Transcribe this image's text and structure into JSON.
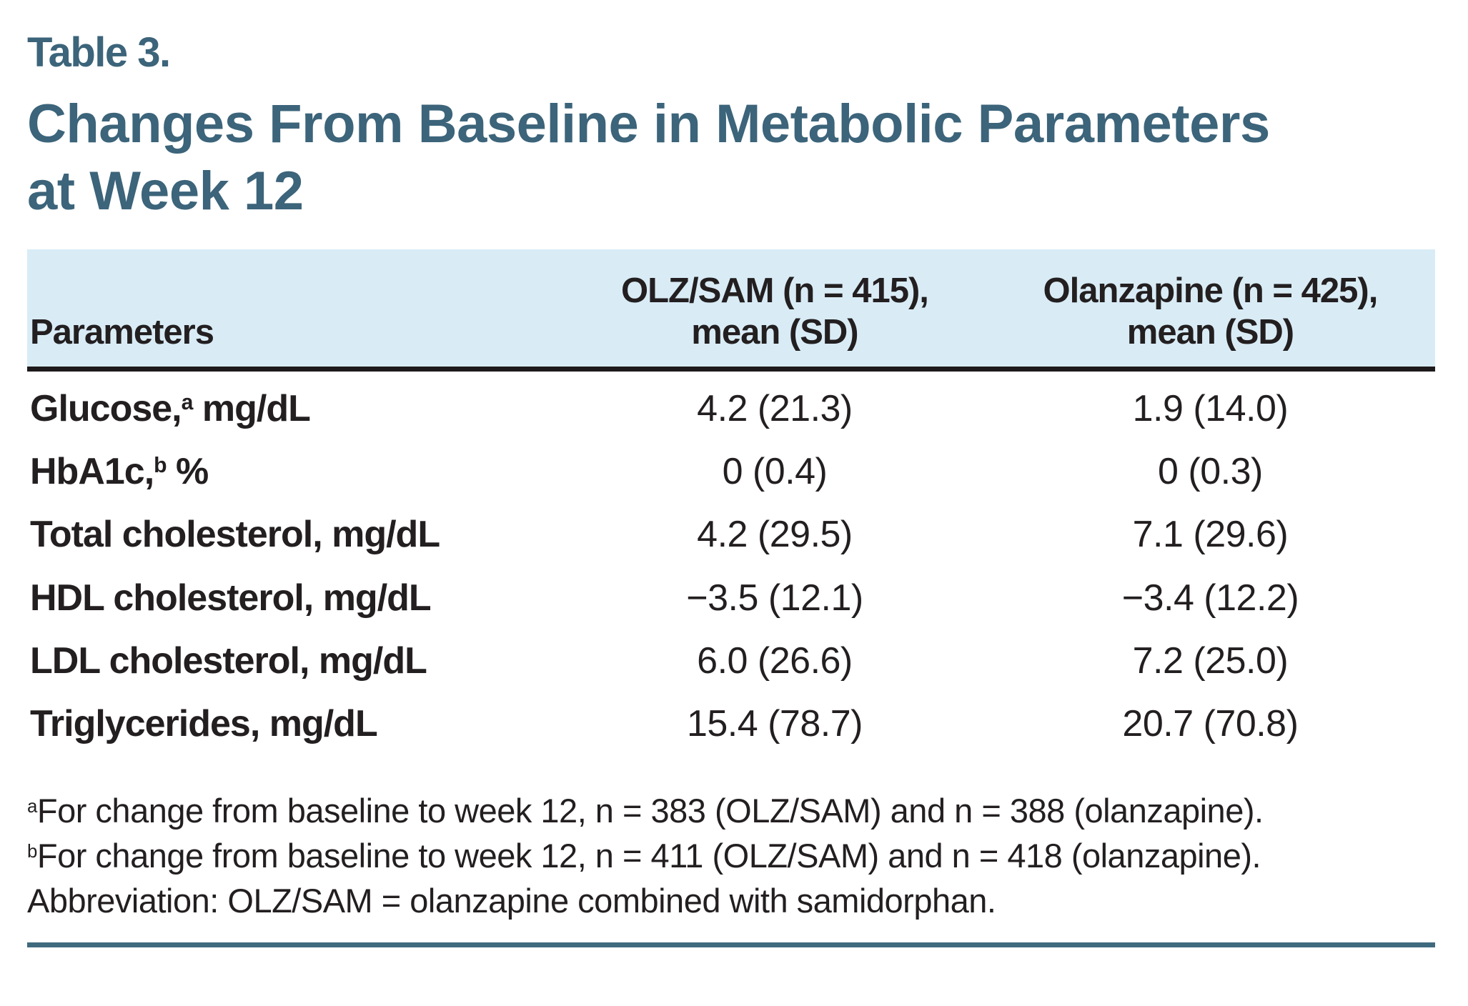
{
  "colors": {
    "accent_teal": "#3c647a",
    "header_band_bg": "#d9ecf6",
    "header_rule_black": "#1e1a1b",
    "bottom_rule_teal": "#3f6a7d",
    "text_black": "#231f20"
  },
  "table_label": "Table 3.",
  "title": "Changes From Baseline in Metabolic Parameters\nat Week 12",
  "table": {
    "col_headers": {
      "parameters": "Parameters",
      "olzsam": "OLZ/SAM (n = 415),\nmean (SD)",
      "olanzapine": "Olanzapine (n = 425),\nmean (SD)"
    },
    "rows": [
      {
        "pre": "Glucose,",
        "sup": "a",
        "post": " mg/dL",
        "olzsam": "4.2 (21.3)",
        "olanzapine": "1.9 (14.0)"
      },
      {
        "pre": "HbA1c,",
        "sup": "b",
        "post": " %",
        "olzsam": "0 (0.4)",
        "olanzapine": "0 (0.3)"
      },
      {
        "pre": "Total cholesterol, mg/dL",
        "sup": "",
        "post": "",
        "olzsam": "4.2 (29.5)",
        "olanzapine": "7.1 (29.6)"
      },
      {
        "pre": "HDL cholesterol, mg/dL",
        "sup": "",
        "post": "",
        "olzsam": "−3.5 (12.1)",
        "olanzapine": "−3.4 (12.2)"
      },
      {
        "pre": "LDL cholesterol, mg/dL",
        "sup": "",
        "post": "",
        "olzsam": "6.0 (26.6)",
        "olanzapine": "7.2 (25.0)"
      },
      {
        "pre": "Triglycerides, mg/dL",
        "sup": "",
        "post": "",
        "olzsam": "15.4 (78.7)",
        "olanzapine": "20.7 (70.8)"
      }
    ]
  },
  "footnotes": [
    {
      "sup": "a",
      "text": "For change from baseline to week 12, n = 383 (OLZ/SAM) and n = 388 (olanzapine)."
    },
    {
      "sup": "b",
      "text": "For change from baseline to week 12, n = 411 (OLZ/SAM) and n = 418 (olanzapine)."
    },
    {
      "sup": "",
      "text": "Abbreviation: OLZ/SAM = olanzapine combined with samidorphan."
    }
  ]
}
